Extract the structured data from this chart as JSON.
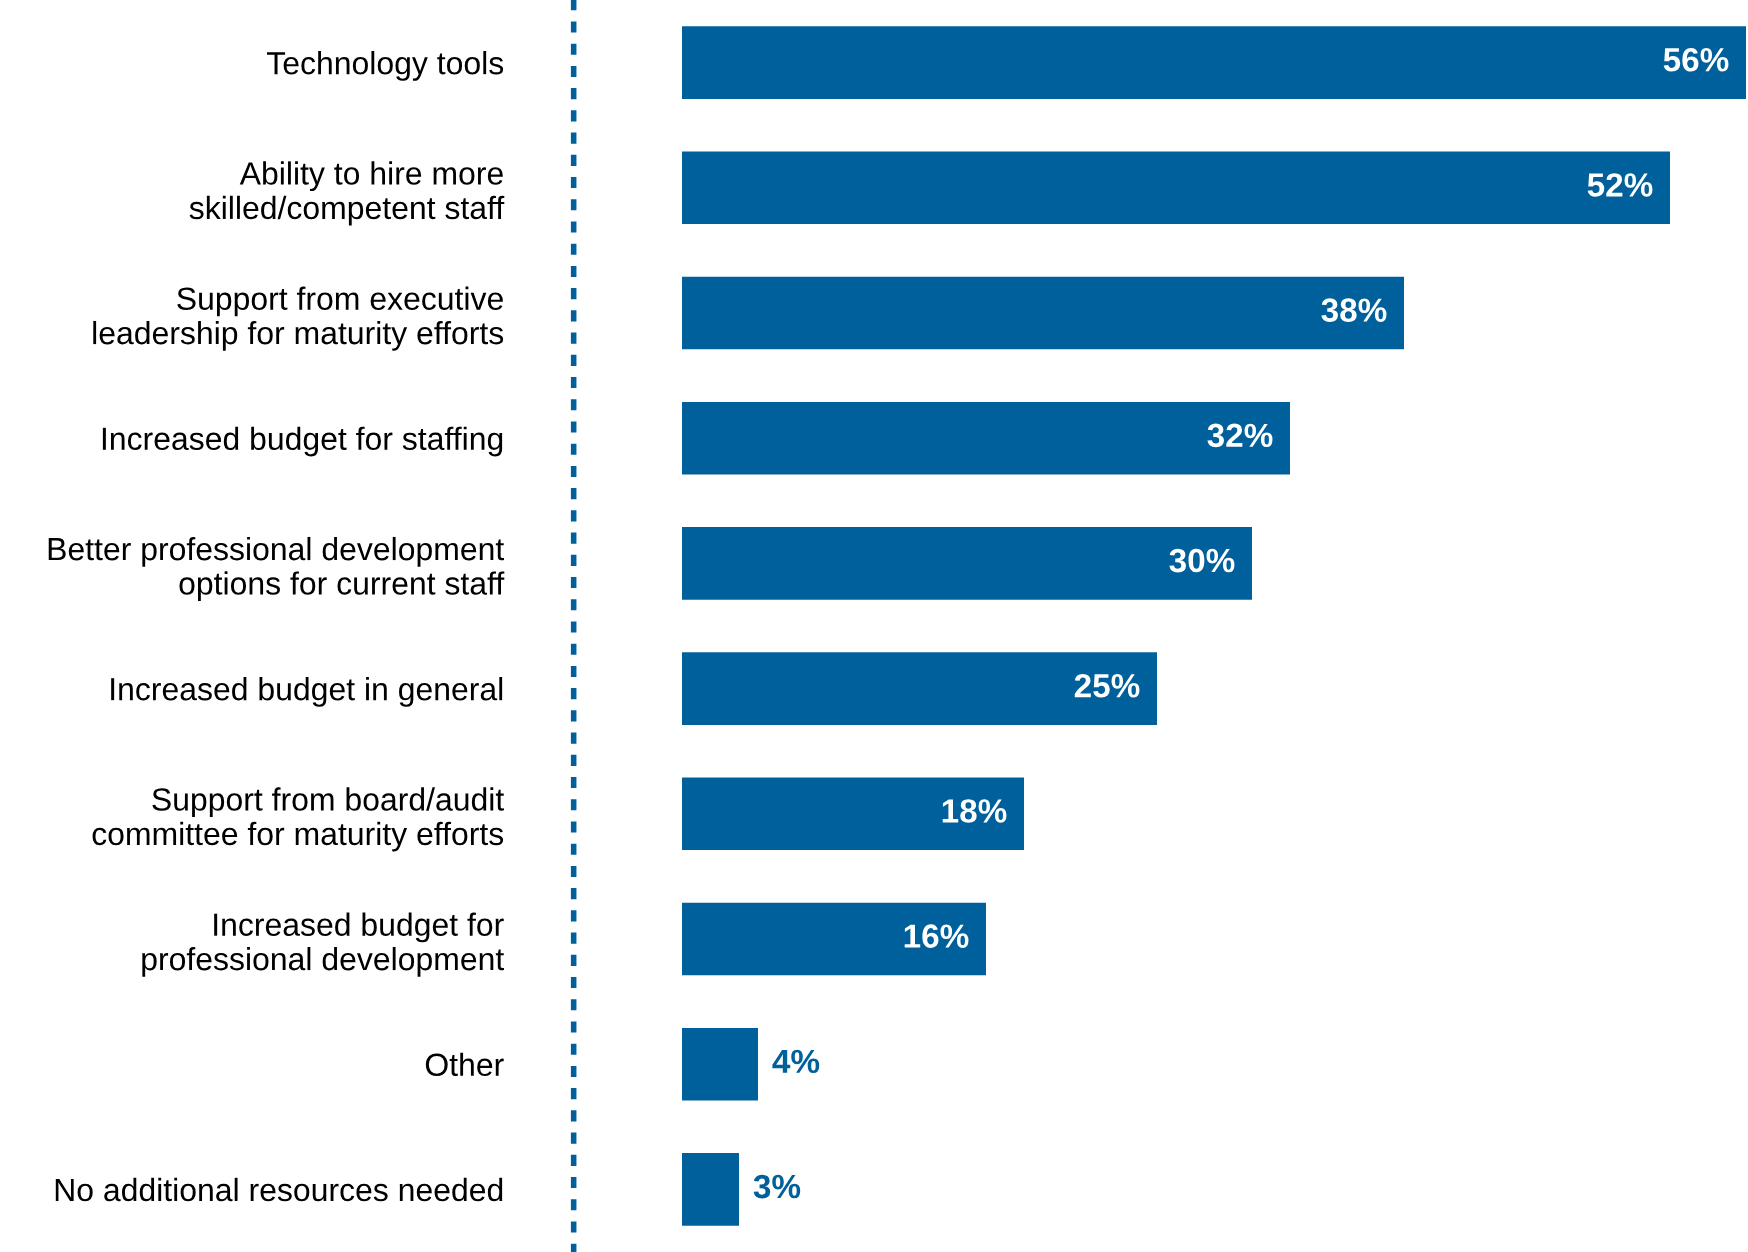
{
  "chart_data": {
    "type": "bar",
    "orientation": "horizontal",
    "categories": [
      "Technology tools",
      "Ability to hire more\nskilled/competent staff",
      "Support from executive\nleadership for maturity efforts",
      "Increased budget for staffing",
      "Better professional development\noptions for current staff",
      "Increased budget in general",
      "Support from board/audit\ncommittee for maturity efforts",
      "Increased budget for\nprofessional development",
      "Other",
      "No additional resources needed"
    ],
    "values": [
      56,
      52,
      38,
      32,
      30,
      25,
      18,
      16,
      4,
      3
    ],
    "value_labels": [
      "56%",
      "52%",
      "38%",
      "32%",
      "30%",
      "25%",
      "18%",
      "16%",
      "4%",
      "3%"
    ],
    "color": "#00609c",
    "grid": false,
    "legend": false
  }
}
